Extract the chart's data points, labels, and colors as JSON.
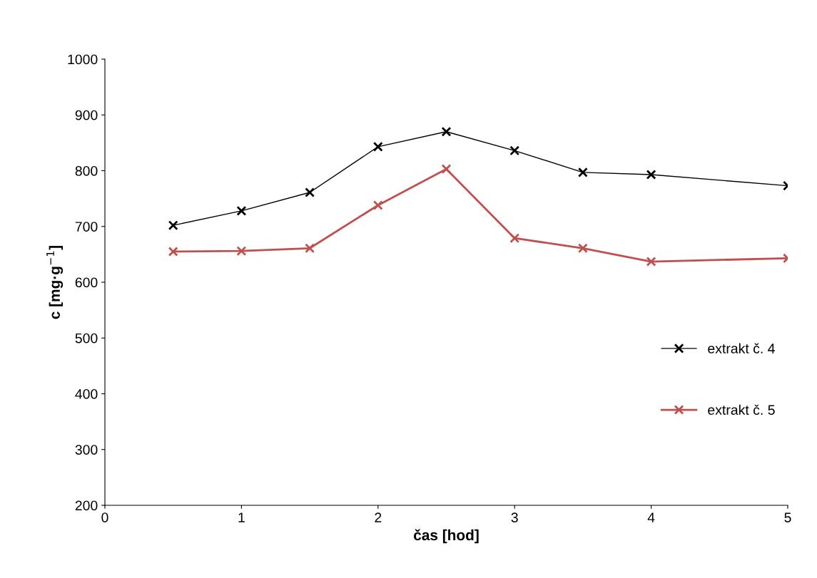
{
  "chart_data": {
    "type": "line",
    "xlabel": "čas [hod]",
    "ylabel": "c [mg·g$^{−1}$]",
    "xlim": [
      0,
      5
    ],
    "xticks": [
      0,
      1,
      2,
      3,
      4,
      5
    ],
    "ylim": [
      200,
      1000
    ],
    "yticks": [
      200,
      300,
      400,
      500,
      600,
      700,
      800,
      900,
      1000
    ],
    "grid": false,
    "legend": "right",
    "marker": "cross",
    "line_style": "solid",
    "series": [
      {
        "name": "extrakt č. 4",
        "color": "#000000",
        "x": [
          0.5,
          1,
          1.5,
          2,
          2.5,
          3,
          3.5,
          4,
          5
        ],
        "values": [
          702,
          728,
          761,
          843,
          870,
          836,
          797,
          793,
          773
        ]
      },
      {
        "name": "extrakt č. 5",
        "color": "#c0504d",
        "x": [
          0.5,
          1,
          1.5,
          2,
          2.5,
          3,
          3.5,
          4,
          5
        ],
        "values": [
          655,
          656,
          661,
          738,
          803,
          679,
          661,
          637,
          643
        ]
      }
    ]
  }
}
